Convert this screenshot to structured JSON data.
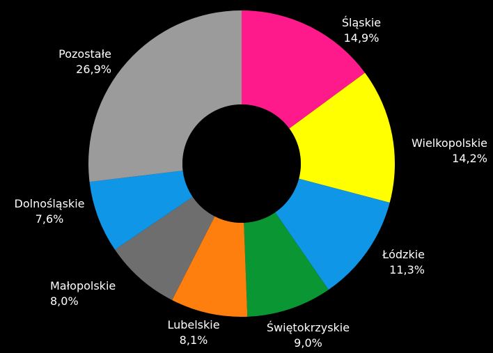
{
  "chart_data": {
    "type": "pie",
    "donut": true,
    "start_angle_deg": 0,
    "direction": "clockwise",
    "slices": [
      {
        "name": "Śląskie",
        "value": 14.9,
        "label": "14,9%",
        "color": "#ff1a8c"
      },
      {
        "name": "Wielkopolskie",
        "value": 14.2,
        "label": "14,2%",
        "color": "#ffff00"
      },
      {
        "name": "Łódzkie",
        "value": 11.3,
        "label": "11,3%",
        "color": "#0f96e6"
      },
      {
        "name": "Świętokrzyskie",
        "value": 9.0,
        "label": "9,0%",
        "color": "#0a9632"
      },
      {
        "name": "Lubelskie",
        "value": 8.1,
        "label": "8,1%",
        "color": "#ff7f0e"
      },
      {
        "name": "Małopolskie",
        "value": 8.0,
        "label": "8,0%",
        "color": "#6e6e6e"
      },
      {
        "name": "Dolnośląskie",
        "value": 7.6,
        "label": "7,6%",
        "color": "#0f96e6"
      },
      {
        "name": "Pozostałe",
        "value": 26.9,
        "label": "26,9%",
        "color": "#9b9b9b"
      }
    ],
    "background": "#000000",
    "text_color": "#ffffff"
  }
}
